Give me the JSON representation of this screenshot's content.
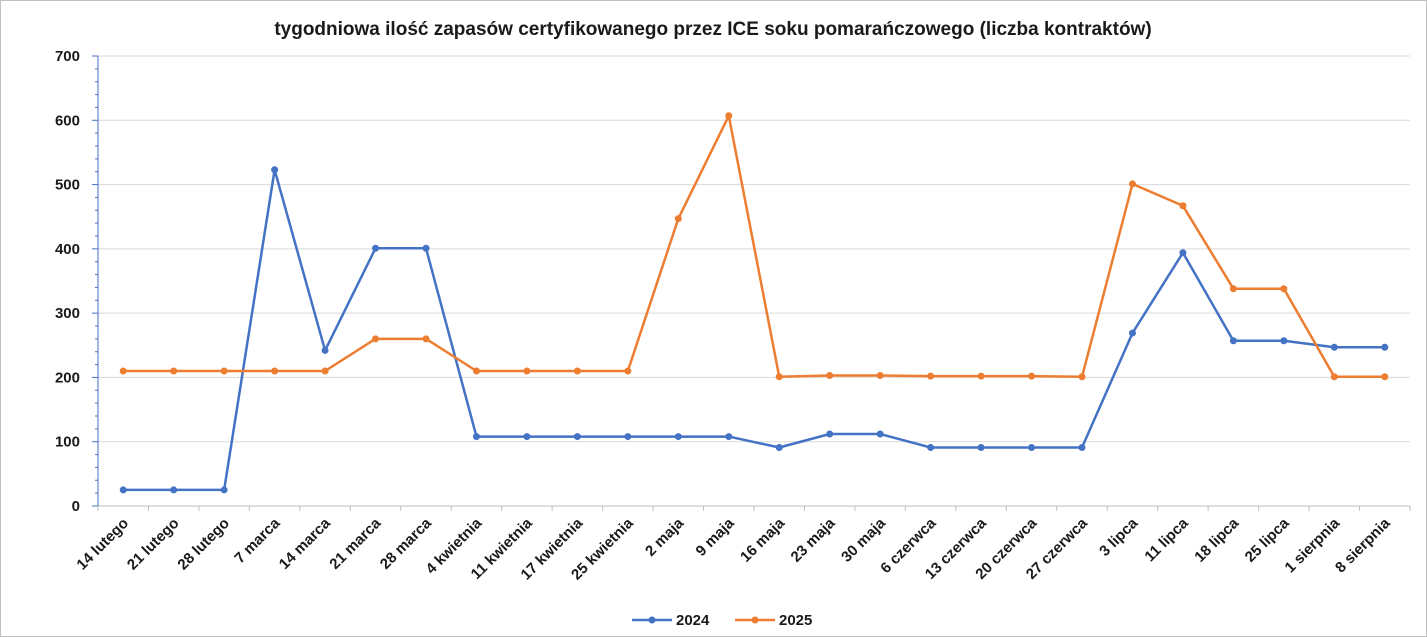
{
  "chart_data": {
    "type": "line",
    "title": "tygodniowa ilość zapasów certyfikowanego przez ICE soku pomarańczowego (liczba kontraktów)",
    "xlabel": "",
    "ylabel": "",
    "ylim": [
      0,
      700
    ],
    "yticks": [
      "0",
      "100",
      "200",
      "300",
      "400",
      "500",
      "600",
      "700"
    ],
    "grid": true,
    "legend": "bottom",
    "categories": [
      "14 lutego",
      "21 lutego",
      "28 lutego",
      "7 marca",
      "14 marca",
      "21 marca",
      "28 marca",
      "4 kwietnia",
      "11 kwietnia",
      "17 kwietnia",
      "25 kwietnia",
      "2 maja",
      "9 maja",
      "16 maja",
      "23 maja",
      "30 maja",
      "6 czerwca",
      "13 czerwca",
      "20 czerwca",
      "27 czerwca",
      "3 lipca",
      "11 lipca",
      "18 lipca",
      "25 lipca",
      "1 sierpnia",
      "8 sierpnia"
    ],
    "series": [
      {
        "name": "2024",
        "color": "#4472c4",
        "values": [
          25,
          25,
          25,
          523,
          242,
          401,
          401,
          108,
          108,
          108,
          108,
          108,
          108,
          91,
          112,
          112,
          91,
          91,
          91,
          91,
          269,
          394,
          257,
          257,
          247,
          247
        ]
      },
      {
        "name": "2025",
        "color": "#ed7d31",
        "values": [
          210,
          210,
          210,
          210,
          210,
          260,
          260,
          210,
          210,
          210,
          210,
          447,
          607,
          201,
          203,
          203,
          202,
          202,
          202,
          201,
          501,
          467,
          338,
          338,
          201,
          201
        ]
      }
    ]
  }
}
